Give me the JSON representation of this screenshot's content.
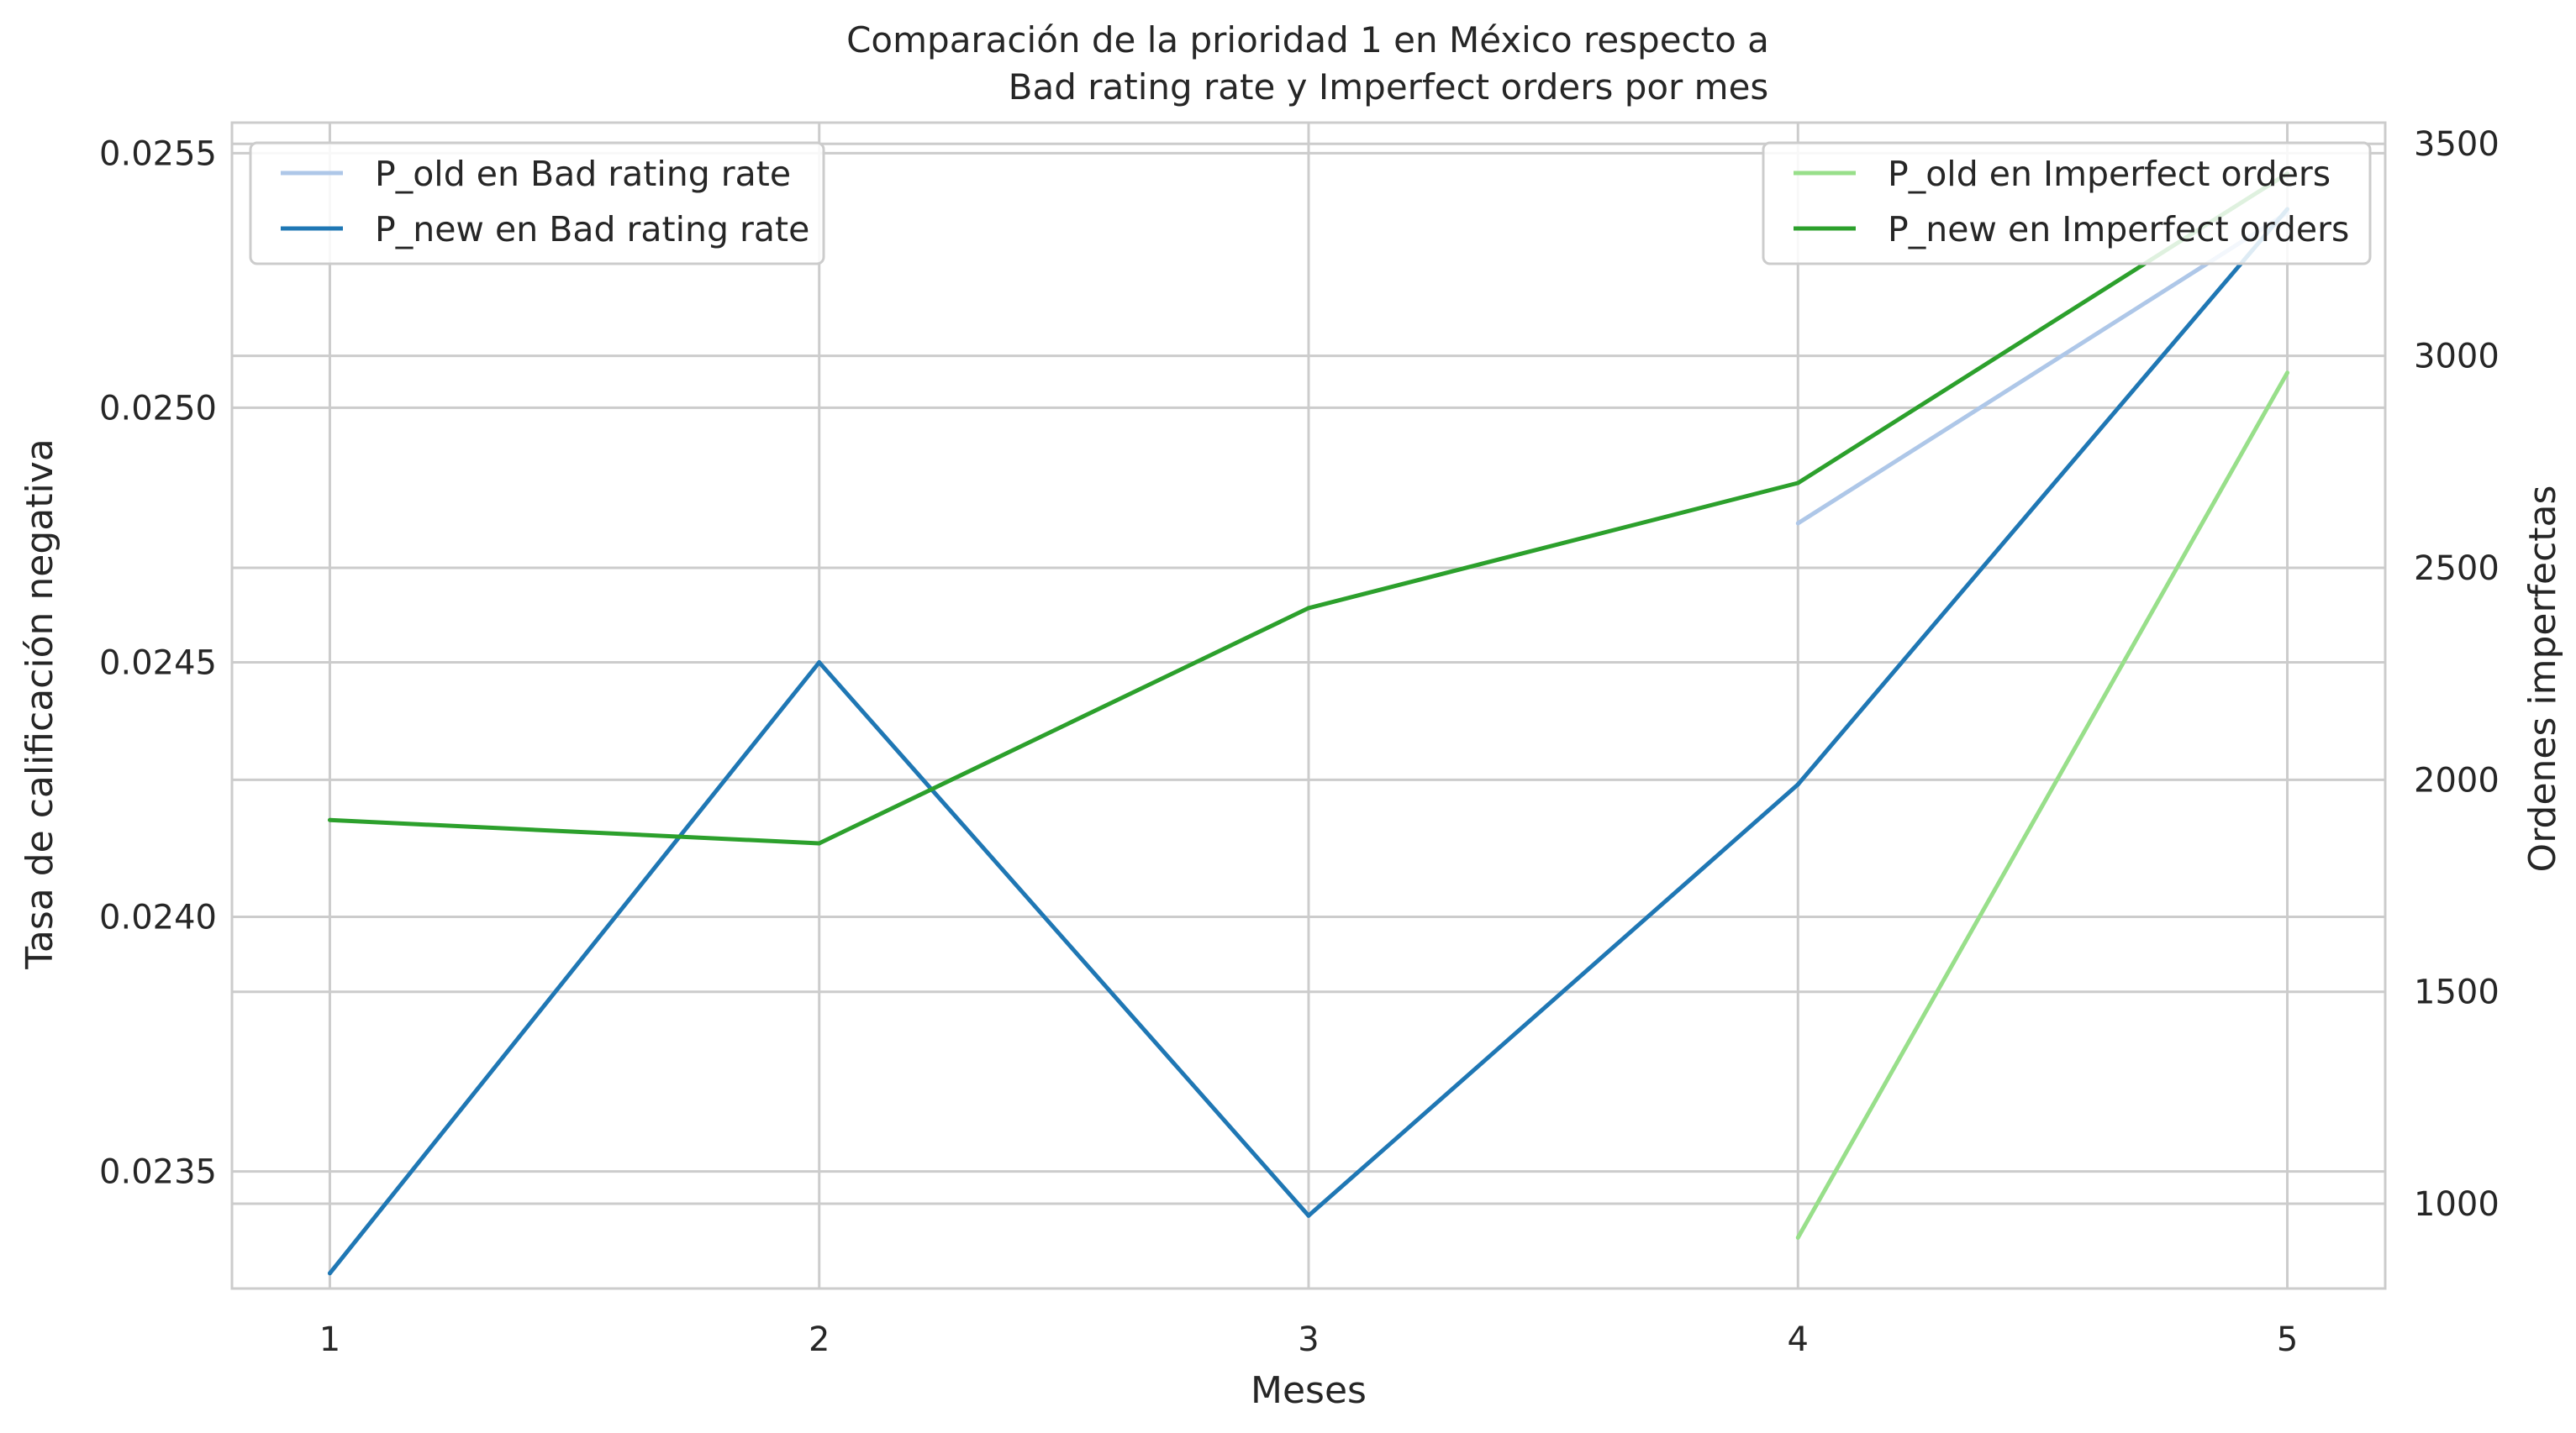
{
  "chart_data": {
    "type": "line",
    "title_line1": "Comparación de la prioridad 1 en México respecto a",
    "title_line2": "Bad rating rate y Imperfect orders por mes",
    "xlabel": "Meses",
    "ylabel_left": "Tasa de calificación negativa",
    "ylabel_right": "Ordenes imperfectas",
    "x_ticks": [
      "1",
      "2",
      "3",
      "4",
      "5"
    ],
    "xlim": [
      0.8,
      5.2
    ],
    "ylim_left": [
      0.02327,
      0.02556
    ],
    "ylim_right": [
      800,
      3550
    ],
    "y_ticks_left": [
      0.0235,
      0.024,
      0.0245,
      0.025,
      0.0255
    ],
    "y_tick_labels_left": [
      "0.0235",
      "0.0240",
      "0.0245",
      "0.0250",
      "0.0255"
    ],
    "y_ticks_right": [
      1000,
      1500,
      2000,
      2500,
      3000,
      3500
    ],
    "y_tick_labels_right": [
      "1000",
      "1500",
      "2000",
      "2500",
      "3000",
      "3500"
    ],
    "grid": true,
    "series": [
      {
        "name": "P_old en Bad rating rate",
        "axis": "left",
        "color": "#aec7e8",
        "x": [
          4,
          5
        ],
        "y": [
          0.024773,
          0.025383
        ]
      },
      {
        "name": "P_new en Bad rating rate",
        "axis": "left",
        "color": "#1f77b4",
        "x": [
          1,
          2,
          3,
          4,
          5
        ],
        "y": [
          0.0233,
          0.0245,
          0.023413,
          0.02426,
          0.02539
        ]
      },
      {
        "name": "P_old en Imperfect orders",
        "axis": "right",
        "color": "#98df8a",
        "x": [
          4,
          5
        ],
        "y": [
          920,
          2960
        ]
      },
      {
        "name": "P_new en Imperfect orders",
        "axis": "right",
        "color": "#2ca02c",
        "x": [
          1,
          2,
          3,
          4,
          5
        ],
        "y": [
          1905,
          1850,
          2405,
          2700,
          3430
        ]
      }
    ],
    "legends": [
      {
        "placement": "upper-left",
        "series": [
          0,
          1
        ]
      },
      {
        "placement": "upper-right",
        "series": [
          2,
          3
        ]
      }
    ]
  }
}
